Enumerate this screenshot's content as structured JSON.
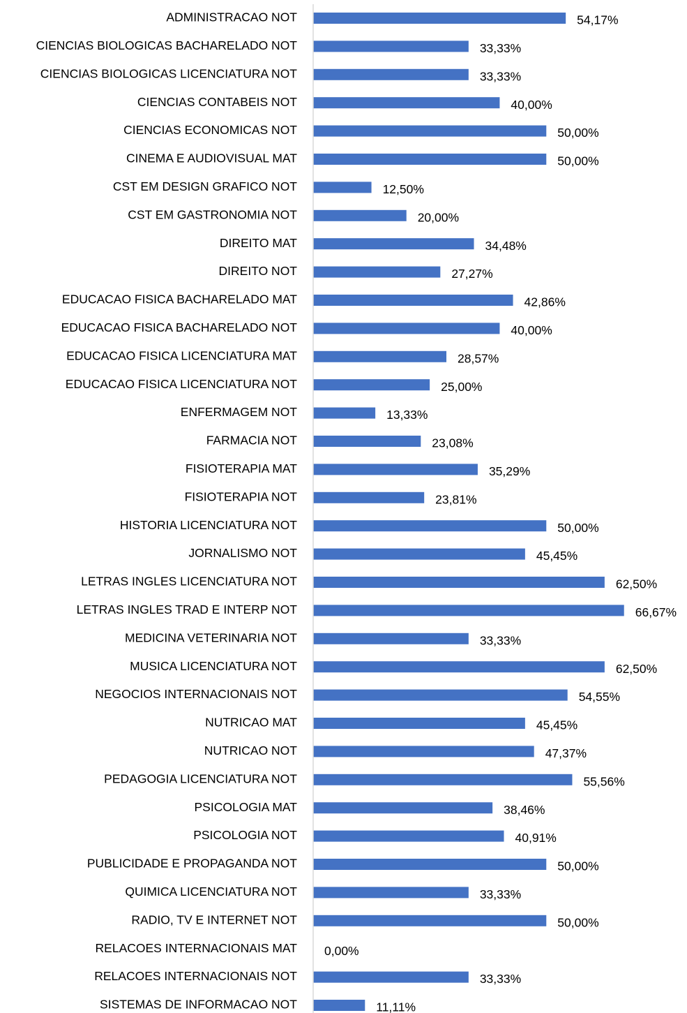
{
  "chart_data": {
    "type": "barh",
    "color": "#4472c4",
    "xlim": [
      0,
      70
    ],
    "categories": [
      "ADMINISTRACAO NOT",
      "CIENCIAS BIOLOGICAS BACHARELADO NOT",
      "CIENCIAS BIOLOGICAS LICENCIATURA NOT",
      "CIENCIAS CONTABEIS NOT",
      "CIENCIAS ECONOMICAS NOT",
      "CINEMA E AUDIOVISUAL MAT",
      "CST EM DESIGN GRAFICO NOT",
      "CST EM GASTRONOMIA NOT",
      "DIREITO MAT",
      "DIREITO NOT",
      "EDUCACAO FISICA BACHARELADO MAT",
      "EDUCACAO FISICA BACHARELADO NOT",
      "EDUCACAO FISICA LICENCIATURA MAT",
      "EDUCACAO FISICA LICENCIATURA NOT",
      "ENFERMAGEM NOT",
      "FARMACIA NOT",
      "FISIOTERAPIA MAT",
      "FISIOTERAPIA NOT",
      "HISTORIA LICENCIATURA NOT",
      "JORNALISMO NOT",
      "LETRAS INGLES LICENCIATURA NOT",
      "LETRAS INGLES TRAD E INTERP NOT",
      "MEDICINA VETERINARIA NOT",
      "MUSICA LICENCIATURA NOT",
      "NEGOCIOS INTERNACIONAIS NOT",
      "NUTRICAO MAT",
      "NUTRICAO NOT",
      "PEDAGOGIA LICENCIATURA NOT",
      "PSICOLOGIA MAT",
      "PSICOLOGIA NOT",
      "PUBLICIDADE E PROPAGANDA NOT",
      "QUIMICA LICENCIATURA NOT",
      "RADIO, TV E INTERNET NOT",
      "RELACOES INTERNACIONAIS MAT",
      "RELACOES INTERNACIONAIS NOT",
      "SISTEMAS DE INFORMACAO NOT"
    ],
    "values": [
      54.17,
      33.33,
      33.33,
      40.0,
      50.0,
      50.0,
      12.5,
      20.0,
      34.48,
      27.27,
      42.86,
      40.0,
      28.57,
      25.0,
      13.33,
      23.08,
      35.29,
      23.81,
      50.0,
      45.45,
      62.5,
      66.67,
      33.33,
      62.5,
      54.55,
      45.45,
      47.37,
      55.56,
      38.46,
      40.91,
      50.0,
      33.33,
      50.0,
      0.0,
      33.33,
      11.11
    ],
    "value_labels": [
      "54,17%",
      "33,33%",
      "33,33%",
      "40,00%",
      "50,00%",
      "50,00%",
      "12,50%",
      "20,00%",
      "34,48%",
      "27,27%",
      "42,86%",
      "40,00%",
      "28,57%",
      "25,00%",
      "13,33%",
      "23,08%",
      "35,29%",
      "23,81%",
      "50,00%",
      "45,45%",
      "62,50%",
      "66,67%",
      "33,33%",
      "62,50%",
      "54,55%",
      "45,45%",
      "47,37%",
      "55,56%",
      "38,46%",
      "40,91%",
      "50,00%",
      "33,33%",
      "50,00%",
      "0,00%",
      "33,33%",
      "11,11%"
    ]
  }
}
